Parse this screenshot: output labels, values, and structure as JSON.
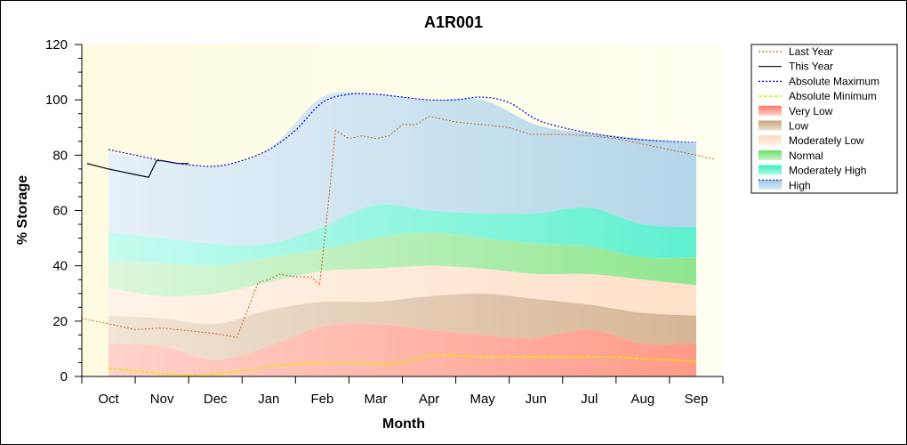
{
  "chart_data": {
    "type": "area",
    "title": "A1R001",
    "xlabel": "Month",
    "ylabel": "% Storage",
    "ylim": [
      0,
      120
    ],
    "yticks": [
      0,
      20,
      40,
      60,
      80,
      100,
      120
    ],
    "x_range": [
      -0.5,
      11.5
    ],
    "categories": [
      "Oct",
      "Nov",
      "Dec",
      "Jan",
      "Feb",
      "Mar",
      "Apr",
      "May",
      "Jun",
      "Jul",
      "Aug",
      "Sep"
    ],
    "band_x": [
      0,
      1,
      2,
      3,
      4,
      5,
      6,
      7,
      8,
      9,
      10,
      11
    ],
    "bands": {
      "very_low": [
        12,
        11,
        6,
        11,
        18,
        19,
        17,
        15,
        14,
        17,
        12,
        12
      ],
      "low": [
        22,
        21,
        19,
        24,
        27,
        27,
        29,
        30,
        28,
        26,
        23,
        22
      ],
      "moderately_low": [
        32,
        29,
        30,
        34,
        38,
        39,
        40,
        39,
        37,
        37,
        35,
        33
      ],
      "normal": [
        42,
        41,
        40,
        43,
        46,
        50,
        52,
        50,
        48,
        47,
        43,
        43
      ],
      "moderately_high": [
        52,
        50,
        48,
        48,
        54,
        62,
        60,
        59,
        59,
        61,
        55,
        54
      ],
      "high": [
        81,
        78,
        76,
        82,
        101,
        102,
        100,
        100,
        91,
        88,
        86,
        84
      ]
    },
    "series": [
      {
        "name": "Last Year",
        "color": "#c8641e",
        "x": [
          -0.5,
          0,
          0.5,
          1,
          1.5,
          2,
          2.3,
          2.4,
          2.6,
          2.8,
          3,
          3.2,
          3.5,
          3.8,
          3.95,
          4.1,
          4.25,
          4.5,
          4.75,
          5,
          5.25,
          5.5,
          5.75,
          6,
          6.25,
          6.5,
          7,
          7.5,
          7.9,
          8,
          8.5,
          9,
          9.5,
          10,
          10.5,
          11,
          11.35
        ],
        "y": [
          21,
          19,
          17,
          17.5,
          16.5,
          15.5,
          14.5,
          14,
          24,
          34,
          35,
          37,
          36,
          36,
          33,
          60,
          89,
          86,
          87,
          86,
          87,
          91,
          91,
          94,
          93,
          92,
          91,
          90,
          87.5,
          87.5,
          87.5,
          87,
          86,
          84,
          82,
          80,
          78.5
        ]
      },
      {
        "name": "This Year",
        "color": "#000000",
        "x": [
          -0.4,
          0,
          0.5,
          0.75,
          0.9,
          1,
          1.3,
          1.5
        ],
        "y": [
          77,
          75,
          73,
          72,
          78,
          78,
          77,
          77
        ]
      },
      {
        "name": "Absolute Maximum",
        "color": "#0000d0",
        "x": [
          0,
          0.5,
          1,
          1.5,
          2,
          2.5,
          3,
          3.5,
          4,
          4.5,
          5,
          5.5,
          6,
          6.5,
          7,
          7.5,
          8,
          8.5,
          9,
          9.5,
          10,
          10.5,
          11
        ],
        "y": [
          82,
          80,
          78,
          76.5,
          76,
          78,
          82,
          89,
          99,
          102,
          102,
          101,
          100,
          100,
          101,
          99,
          93,
          90,
          88,
          86.5,
          85.5,
          85,
          84.5
        ]
      },
      {
        "name": "Absolute Minimum",
        "color": "#e8e800",
        "x": [
          0,
          0.5,
          1,
          1.5,
          2,
          2.5,
          3,
          3.5,
          4,
          4.5,
          5,
          5.5,
          6,
          6.5,
          7,
          7.5,
          8,
          8.5,
          9,
          9.5,
          10,
          10.5,
          11
        ],
        "y": [
          3,
          2,
          1,
          0.5,
          1,
          2,
          3.5,
          4.5,
          5,
          5,
          4.5,
          5,
          7.5,
          7.5,
          7,
          7,
          7,
          7,
          7,
          7,
          6.5,
          6,
          5.5
        ]
      }
    ],
    "legend": {
      "placement": "right",
      "entries": [
        {
          "label": "Last Year",
          "kind": "line",
          "color": "#c8641e",
          "dash": "2,2"
        },
        {
          "label": "This Year",
          "kind": "line",
          "color": "#000000",
          "dash": ""
        },
        {
          "label": "Absolute Maximum",
          "kind": "line",
          "color": "#0000d0",
          "dash": "2,2"
        },
        {
          "label": "Absolute Minimum",
          "kind": "line",
          "color": "#e8e800",
          "dash": "4,2"
        },
        {
          "label": "Very Low",
          "kind": "fill",
          "color": "#ff9a8a"
        },
        {
          "label": "Low",
          "kind": "fill",
          "color": "#d9b896"
        },
        {
          "label": "Moderately Low",
          "kind": "fill",
          "color": "#ffe2cc"
        },
        {
          "label": "Normal",
          "kind": "fill",
          "color": "#8fe88f"
        },
        {
          "label": "Moderately High",
          "kind": "fill",
          "color": "#66f0cc"
        },
        {
          "label": "High",
          "kind": "fill",
          "color": "#b8d8ee"
        }
      ]
    },
    "colors": {
      "plot_background": "#fffff0",
      "very_low": "#ff9a8a",
      "low": "#d9b896",
      "moderately_low": "#ffe2cc",
      "normal": "#8fe88f",
      "moderately_high": "#66f0cc",
      "high": "#b8d8ee"
    }
  }
}
